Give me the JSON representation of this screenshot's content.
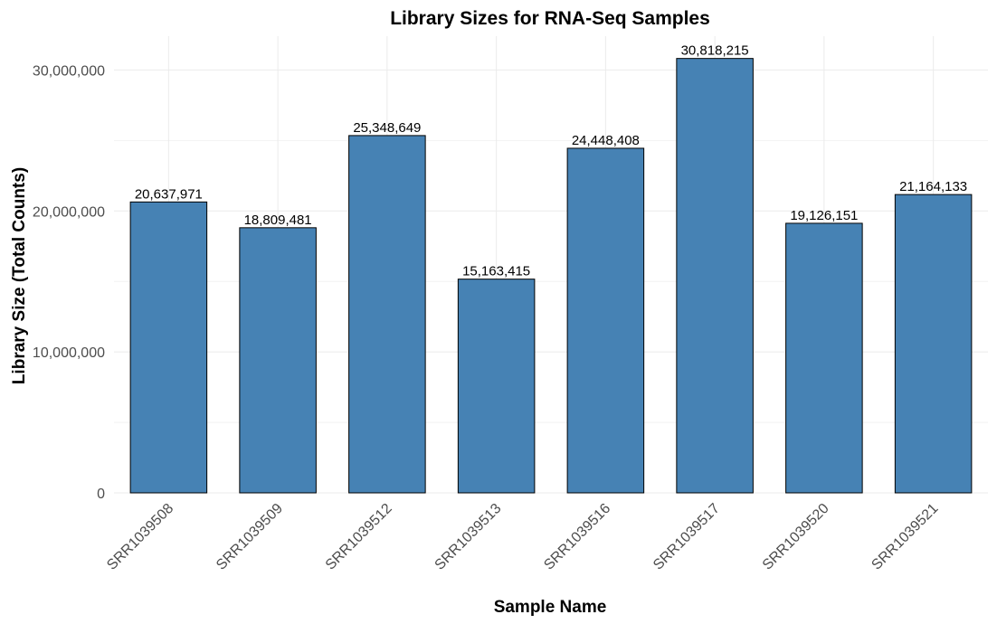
{
  "chart_data": {
    "type": "bar",
    "title": "Library Sizes for RNA-Seq Samples",
    "xlabel": "Sample Name",
    "ylabel": "Library Size (Total Counts)",
    "categories": [
      "SRR1039508",
      "SRR1039509",
      "SRR1039512",
      "SRR1039513",
      "SRR1039516",
      "SRR1039517",
      "SRR1039520",
      "SRR1039521"
    ],
    "values": [
      20637971,
      18809481,
      25348649,
      15163415,
      24448408,
      30818215,
      19126151,
      21164133
    ],
    "value_labels": [
      "20,637,971",
      "18,809,481",
      "25,348,649",
      "15,163,415",
      "24,448,408",
      "30,818,215",
      "19,126,151",
      "21,164,133"
    ],
    "y_ticks": [
      0,
      10000000,
      20000000,
      30000000
    ],
    "y_tick_labels": [
      "0",
      "10,000,000",
      "20,000,000",
      "30,000,000"
    ],
    "ylim": [
      0,
      32400000
    ],
    "grid": true,
    "legend": "none",
    "colors": {
      "bar_fill": "#4682B4",
      "bar_border": "#000000"
    }
  }
}
